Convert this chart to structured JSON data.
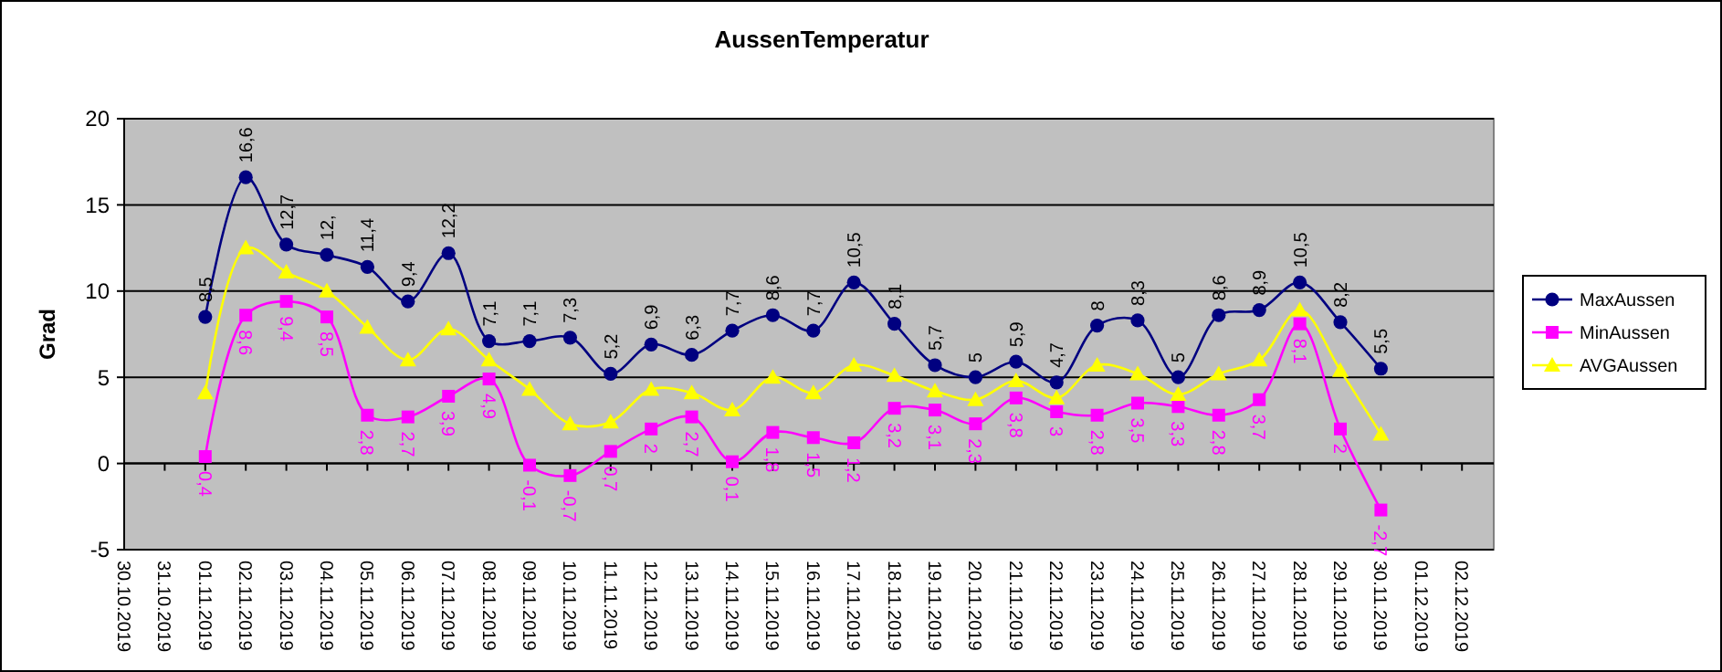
{
  "chart_data": {
    "type": "line",
    "title": "AussenTemperatur",
    "ylabel": "Grad",
    "categories": [
      "30.10.2019",
      "31.10.2019",
      "01.11.2019",
      "02.11.2019",
      "03.11.2019",
      "04.11.2019",
      "05.11.2019",
      "06.11.2019",
      "07.11.2019",
      "08.11.2019",
      "09.11.2019",
      "10.11.2019",
      "11.11.2019",
      "12.11.2019",
      "13.11.2019",
      "14.11.2019",
      "15.11.2019",
      "16.11.2019",
      "17.11.2019",
      "18.11.2019",
      "19.11.2019",
      "20.11.2019",
      "21.11.2019",
      "22.11.2019",
      "23.11.2019",
      "24.11.2019",
      "25.11.2019",
      "26.11.2019",
      "27.11.2019",
      "28.11.2019",
      "29.11.2019",
      "30.11.2019",
      "01.12.2019",
      "02.12.2019"
    ],
    "series": [
      {
        "name": "MaxAussen",
        "color": "#000080",
        "marker": "circle",
        "values": [
          null,
          null,
          8.5,
          16.6,
          12.7,
          12.1,
          11.4,
          9.4,
          12.2,
          7.1,
          7.1,
          7.3,
          5.2,
          6.9,
          6.3,
          7.7,
          8.6,
          7.7,
          10.5,
          8.1,
          5.7,
          5,
          5.9,
          4.7,
          8,
          8.3,
          5,
          8.6,
          8.9,
          10.5,
          8.2,
          5.5,
          null,
          null
        ],
        "value_labels": [
          null,
          null,
          "8,5",
          "16,6",
          "12,7",
          "12,",
          "11,4",
          "9,4",
          "12,2",
          "7,1",
          "7,1",
          "7,3",
          "5,2",
          "6,9",
          "6,3",
          "7,7",
          "8,6",
          "7,7",
          "10,5",
          "8,1",
          "5,7",
          "5",
          "5,9",
          "4,7",
          "8",
          "8,3",
          "5",
          "8,6",
          "8,9",
          "10,5",
          "8,2",
          "5,5",
          null,
          null
        ]
      },
      {
        "name": "MinAussen",
        "color": "#ff00ff",
        "marker": "square",
        "values": [
          null,
          null,
          0.4,
          8.6,
          9.4,
          8.5,
          2.8,
          2.7,
          3.9,
          4.9,
          -0.1,
          -0.7,
          0.7,
          2,
          2.7,
          0.1,
          1.8,
          1.5,
          1.2,
          3.2,
          3.1,
          2.3,
          3.8,
          3,
          2.8,
          3.5,
          3.3,
          2.8,
          3.7,
          8.1,
          2,
          -2.7,
          null,
          null
        ],
        "value_labels": [
          null,
          null,
          "0,4",
          "8,6",
          "9,4",
          "8,5",
          "2,8",
          "2,7",
          "3,9",
          "4,9",
          "-0,1",
          "-0,7",
          "0,7",
          "2",
          "2,7",
          "0,1",
          "1,8",
          "1,5",
          "1,2",
          "3,2",
          "3,1",
          "2,3",
          "3,8",
          "3",
          "2,8",
          "3,5",
          "3,3",
          "2,8",
          "3,7",
          "8,1",
          "2",
          "-2,7",
          null,
          null
        ]
      },
      {
        "name": "AVGAussen",
        "color": "#ffff00",
        "marker": "triangle",
        "values": [
          null,
          null,
          4.1,
          12.5,
          11.1,
          10.0,
          7.9,
          6.0,
          7.8,
          6.0,
          4.3,
          2.3,
          2.4,
          4.3,
          4.1,
          3.1,
          5.0,
          4.1,
          5.7,
          5.1,
          4.2,
          3.7,
          4.8,
          3.8,
          5.7,
          5.2,
          4.0,
          5.2,
          6.0,
          8.9,
          5.4,
          1.7,
          null,
          null
        ]
      }
    ],
    "ylim": [
      -5,
      20
    ],
    "yticks": [
      -5,
      0,
      5,
      10,
      15,
      20
    ],
    "grid": "y",
    "legend": "right"
  }
}
